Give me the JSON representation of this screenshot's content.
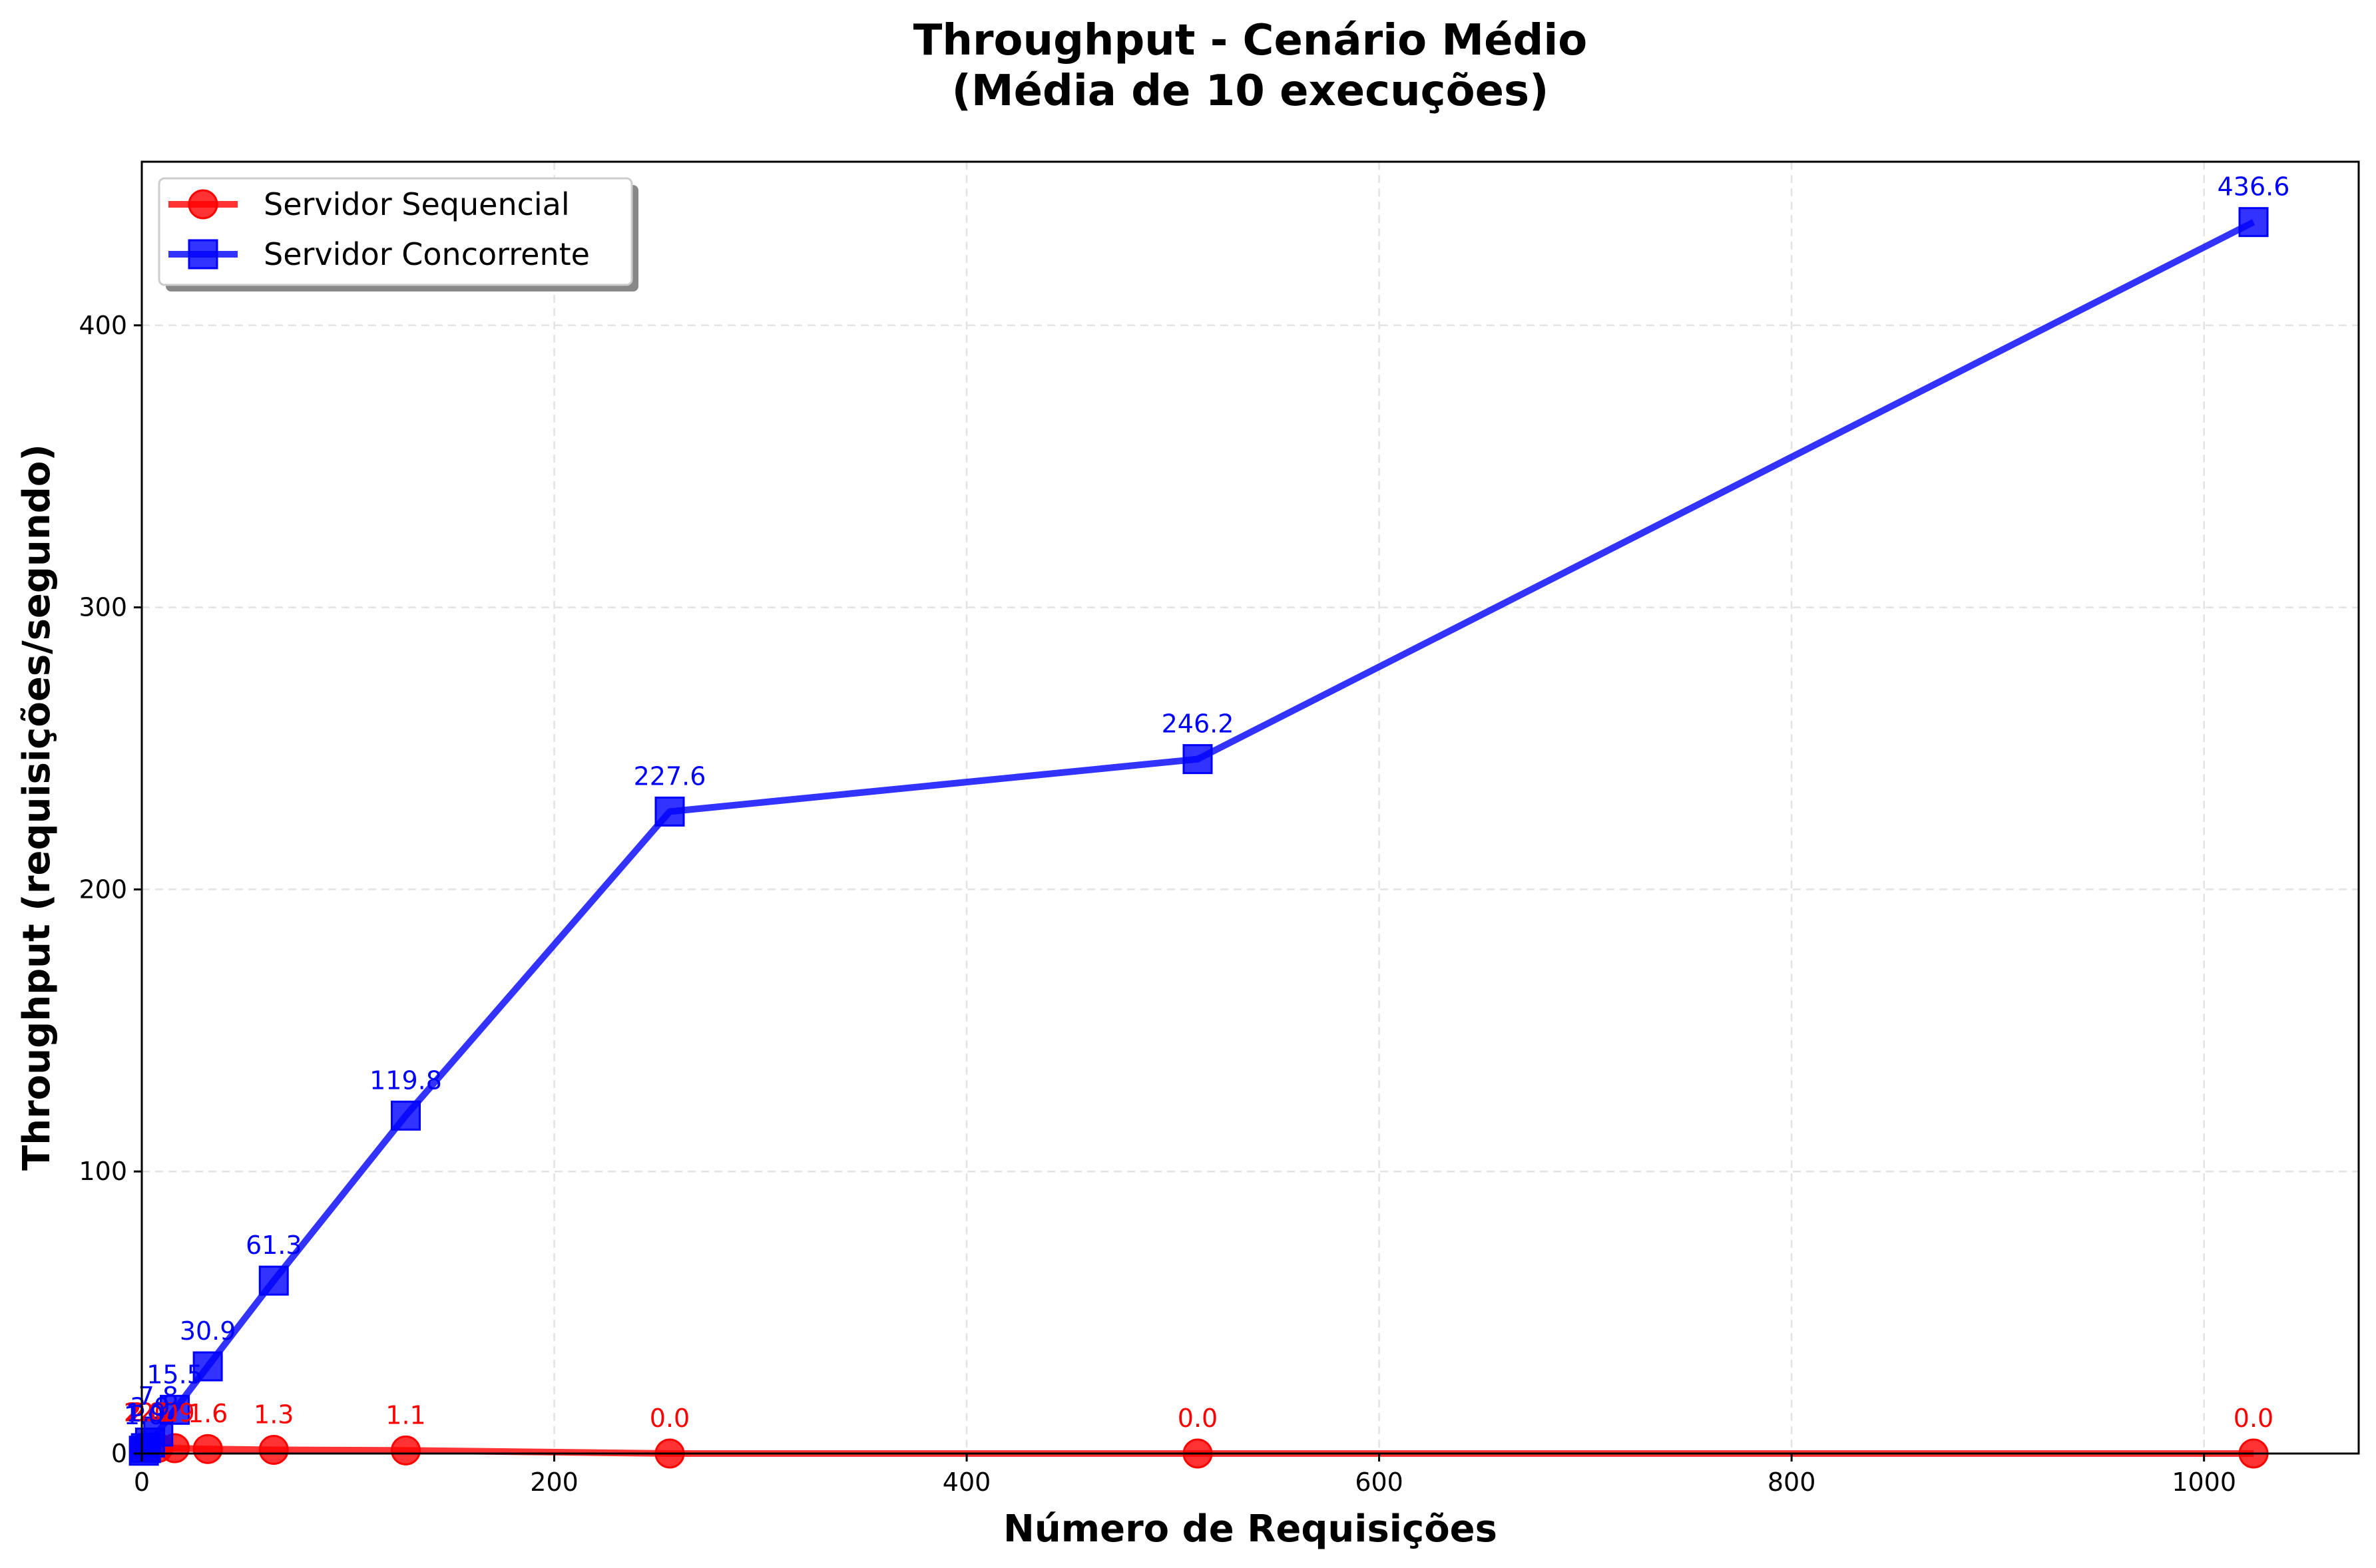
{
  "chart_data": {
    "type": "line",
    "title_line1": "Throughput - Cenário Médio",
    "title_line2": "(Média de 10 execuções)",
    "xlabel": "Número de Requisições",
    "ylabel": "Throughput (requisições/segundo)",
    "xlim": [
      0,
      1075
    ],
    "ylim": [
      0,
      458
    ],
    "xticks": [
      0,
      200,
      400,
      600,
      800,
      1000
    ],
    "yticks": [
      0,
      100,
      200,
      300,
      400
    ],
    "grid": true,
    "legend_position": "top-left",
    "series": [
      {
        "name": "Servidor Sequencial",
        "color": "#ff0000",
        "marker": "circle",
        "x": [
          1,
          2,
          4,
          8,
          16,
          32,
          64,
          128,
          256,
          512,
          1024
        ],
        "y": [
          2.0,
          2.0,
          2.0,
          2.0,
          1.9,
          1.6,
          1.3,
          1.1,
          0.0,
          0.0,
          0.0
        ],
        "labels": [
          "2.0",
          "2.0",
          "2.0",
          "2.0",
          "1.9",
          "1.6",
          "1.3",
          "1.1",
          "0.0",
          "0.0",
          "0.0"
        ]
      },
      {
        "name": "Servidor Concorrente",
        "color": "#0000ff",
        "marker": "square",
        "x": [
          1,
          2,
          4,
          8,
          16,
          32,
          64,
          128,
          256,
          512,
          1024
        ],
        "y": [
          1.0,
          1.9,
          3.9,
          7.8,
          15.5,
          30.9,
          61.3,
          119.8,
          227.6,
          246.2,
          436.6
        ],
        "labels": [
          "1.0",
          "1.9",
          "3.9",
          "7.8",
          "15.5",
          "30.9",
          "61.3",
          "119.8",
          "227.6",
          "246.2",
          "436.6"
        ]
      }
    ]
  }
}
